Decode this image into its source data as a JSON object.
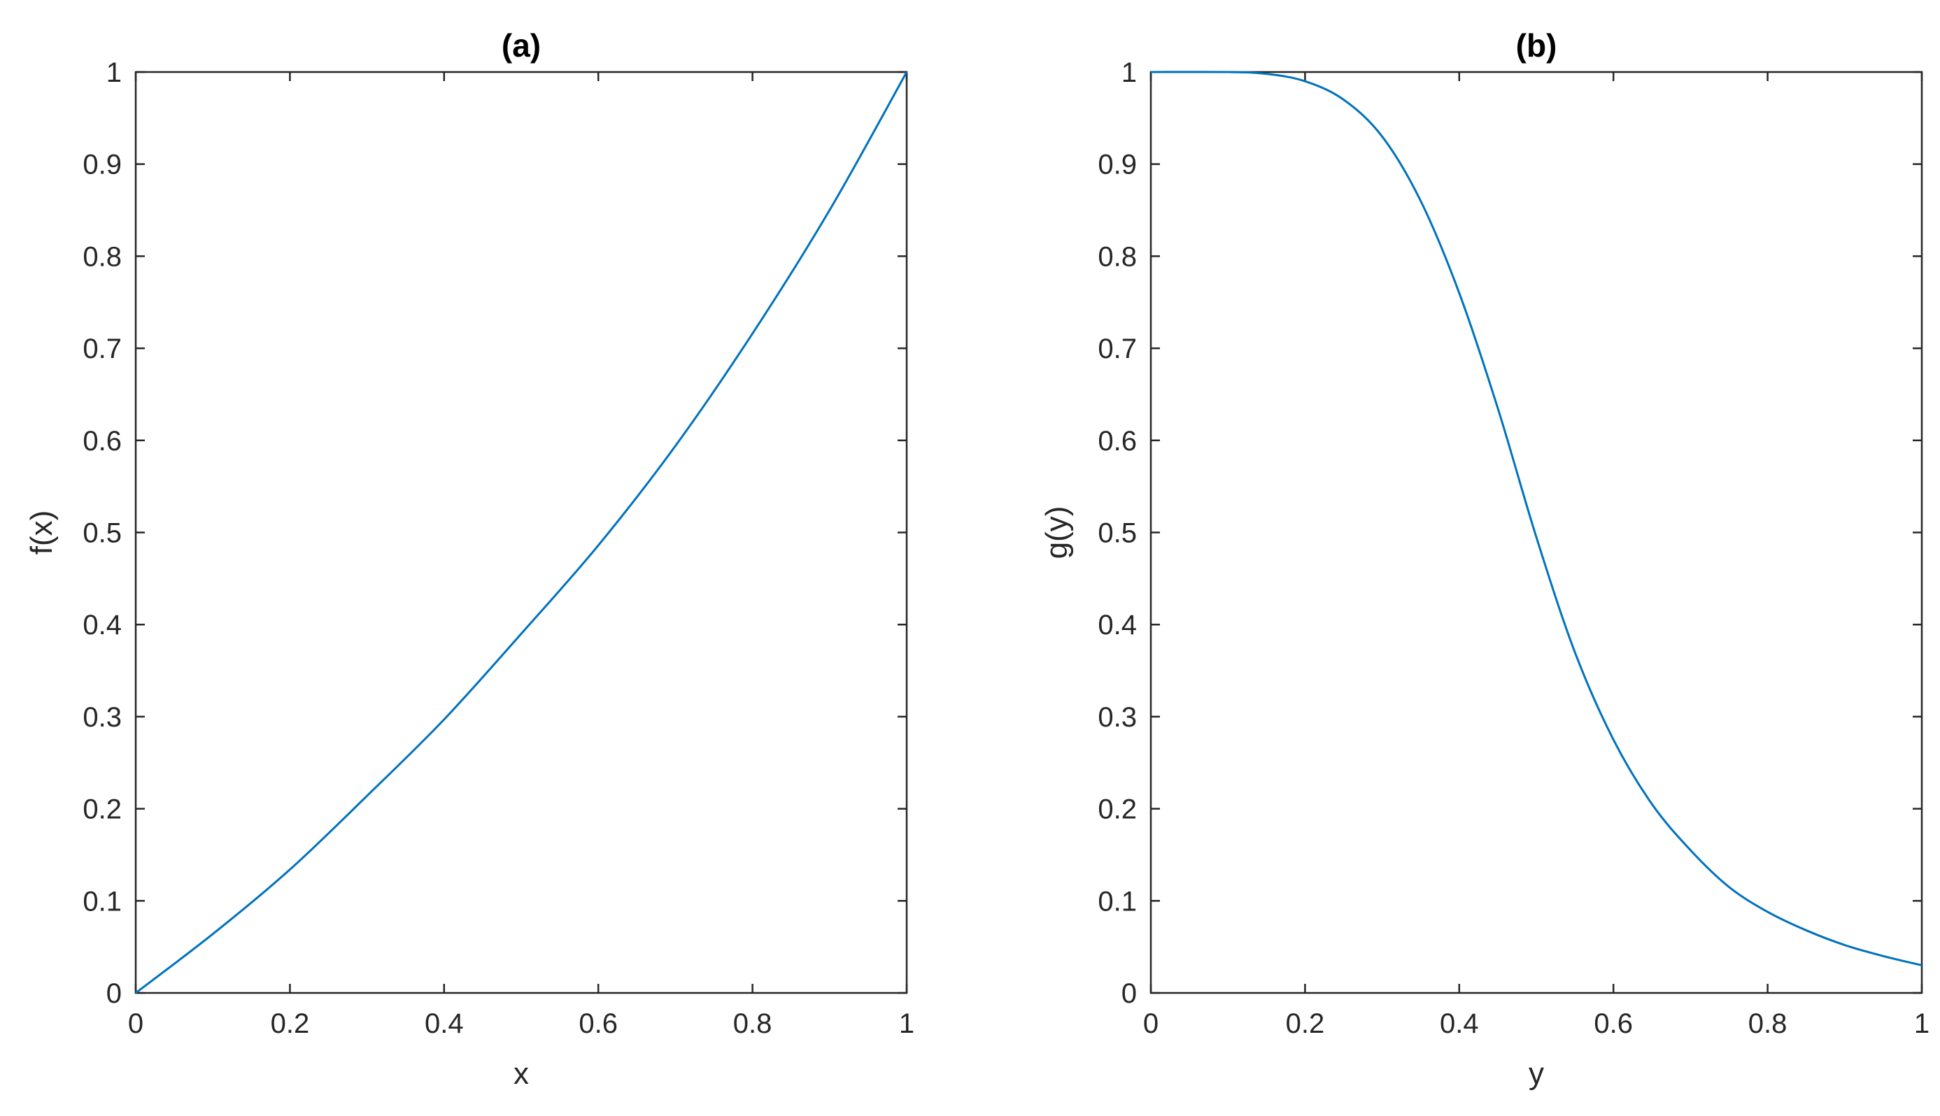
{
  "chart_data": [
    {
      "type": "line",
      "title": "(a)",
      "xlabel": "x",
      "ylabel": "f(x)",
      "xlim": [
        0,
        1
      ],
      "ylim": [
        0,
        1
      ],
      "xticks": [
        "0",
        "0.2",
        "0.4",
        "0.6",
        "0.8",
        "1"
      ],
      "yticks": [
        "0",
        "0.1",
        "0.2",
        "0.3",
        "0.4",
        "0.5",
        "0.6",
        "0.7",
        "0.8",
        "0.9",
        "1"
      ],
      "grid": false,
      "color": "#0072BD",
      "series": [
        {
          "x": [
            0,
            0.1,
            0.2,
            0.3,
            0.4,
            0.5,
            0.6,
            0.7,
            0.8,
            0.9,
            1.0
          ],
          "y": [
            0,
            0.064,
            0.134,
            0.214,
            0.297,
            0.39,
            0.486,
            0.594,
            0.716,
            0.85,
            1.0
          ]
        }
      ]
    },
    {
      "type": "line",
      "title": "(b)",
      "xlabel": "y",
      "ylabel": "g(y)",
      "xlim": [
        0,
        1
      ],
      "ylim": [
        0,
        1
      ],
      "xticks": [
        "0",
        "0.2",
        "0.4",
        "0.6",
        "0.8",
        "1"
      ],
      "yticks": [
        "0",
        "0.1",
        "0.2",
        "0.3",
        "0.4",
        "0.5",
        "0.6",
        "0.7",
        "0.8",
        "0.9",
        "1"
      ],
      "grid": false,
      "color": "#0072BD",
      "series": [
        {
          "x": [
            0,
            0.1,
            0.15,
            0.2,
            0.25,
            0.3,
            0.35,
            0.4,
            0.45,
            0.5,
            0.55,
            0.6,
            0.65,
            0.7,
            0.75,
            0.8,
            0.85,
            0.9,
            0.95,
            1.0
          ],
          "y": [
            1.0,
            1.0,
            0.998,
            0.99,
            0.97,
            0.93,
            0.86,
            0.76,
            0.635,
            0.495,
            0.37,
            0.275,
            0.205,
            0.155,
            0.115,
            0.088,
            0.068,
            0.052,
            0.04,
            0.03
          ]
        }
      ]
    }
  ]
}
